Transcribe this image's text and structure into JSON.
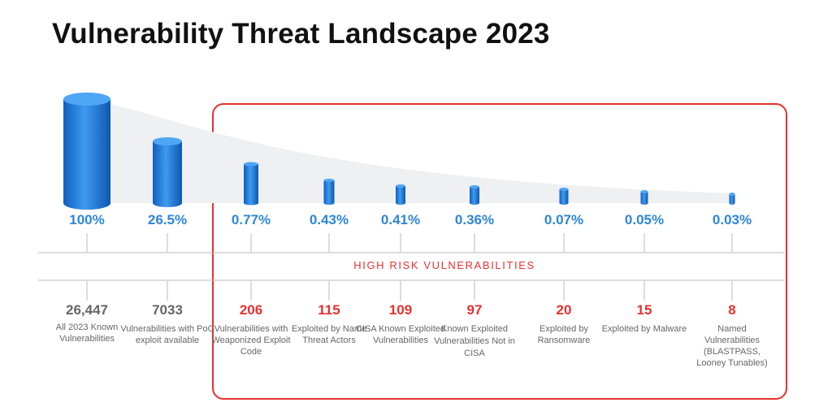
{
  "title": "Vulnerability Threat Landscape 2023",
  "band_label": "HIGH RISK VULNERABILITIES",
  "colors": {
    "blue": "#2d86d9",
    "red": "#e8312f",
    "gray": "#666666"
  },
  "chart_data": {
    "type": "bar",
    "title": "Vulnerability Threat Landscape 2023",
    "categories": [
      {
        "percent": "100%",
        "count": "26,447",
        "desc": "All 2023 Known Vulnerabilities",
        "high_risk": false
      },
      {
        "percent": "26.5%",
        "count": "7033",
        "desc": "Vulnerabilities with PoC exploit available",
        "high_risk": false
      },
      {
        "percent": "0.77%",
        "count": "206",
        "desc": "Vulnerabilities with Weaponized Exploit Code",
        "high_risk": true
      },
      {
        "percent": "0.43%",
        "count": "115",
        "desc": "Exploited by Name Threat Actors",
        "high_risk": true
      },
      {
        "percent": "0.41%",
        "count": "109",
        "desc": "CISA Known Exploited Vulnerabilities",
        "high_risk": true
      },
      {
        "percent": "0.36%",
        "count": "97",
        "desc": "Known Exploited Vulnerabilities Not in CISA",
        "high_risk": true
      },
      {
        "percent": "0.07%",
        "count": "20",
        "desc": "Exploited by Ransomware",
        "high_risk": true
      },
      {
        "percent": "0.05%",
        "count": "15",
        "desc": "Exploited by Malware",
        "high_risk": true
      },
      {
        "percent": "0.03%",
        "count": "8",
        "desc": "Named Vulnerabilities (BLASTPASS, Looney Tunables)",
        "high_risk": true
      }
    ],
    "values": [
      100,
      26.5,
      0.77,
      0.43,
      0.41,
      0.36,
      0.07,
      0.05,
      0.03
    ]
  }
}
